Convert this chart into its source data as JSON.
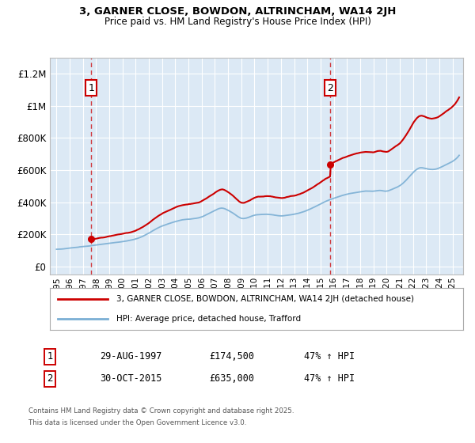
{
  "title1": "3, GARNER CLOSE, BOWDON, ALTRINCHAM, WA14 2JH",
  "title2": "Price paid vs. HM Land Registry's House Price Index (HPI)",
  "purchase1_year": 1997.625,
  "purchase1_price": 174500,
  "purchase2_year": 2015.75,
  "purchase2_price": 635000,
  "legend1": "3, GARNER CLOSE, BOWDON, ALTRINCHAM, WA14 2JH (detached house)",
  "legend2": "HPI: Average price, detached house, Trafford",
  "ann1_num": "1",
  "ann1_date": "29-AUG-1997",
  "ann1_price": "£174,500",
  "ann1_pct": "47% ↑ HPI",
  "ann2_num": "2",
  "ann2_date": "30-OCT-2015",
  "ann2_price": "£635,000",
  "ann2_pct": "47% ↑ HPI",
  "footnote1": "Contains HM Land Registry data © Crown copyright and database right 2025.",
  "footnote2": "This data is licensed under the Open Government Licence v3.0.",
  "red_color": "#cc0000",
  "blue_color": "#7bafd4",
  "bg_color": "#dce9f5",
  "fig_bg": "#ffffff",
  "grid_color": "#ffffff",
  "ylim_max": 1300000,
  "ylim_min": -50000,
  "xlim_min": 1994.5,
  "xlim_max": 2025.8,
  "yticks": [
    0,
    200000,
    400000,
    600000,
    800000,
    1000000,
    1200000
  ],
  "ytick_labels": [
    "£0",
    "£200K",
    "£400K",
    "£600K",
    "£800K",
    "£1M",
    "£1.2M"
  ],
  "hpi_anchors_x": [
    1995.0,
    1995.5,
    1996.0,
    1996.5,
    1997.0,
    1997.5,
    1998.0,
    1998.5,
    1999.0,
    1999.5,
    2000.0,
    2000.5,
    2001.0,
    2001.5,
    2002.0,
    2002.5,
    2003.0,
    2003.5,
    2004.0,
    2004.5,
    2005.0,
    2005.5,
    2006.0,
    2006.5,
    2007.0,
    2007.5,
    2008.0,
    2008.5,
    2009.0,
    2009.5,
    2010.0,
    2010.5,
    2011.0,
    2011.5,
    2012.0,
    2012.5,
    2013.0,
    2013.5,
    2014.0,
    2014.5,
    2015.0,
    2015.5,
    2016.0,
    2016.5,
    2017.0,
    2017.5,
    2018.0,
    2018.5,
    2019.0,
    2019.5,
    2020.0,
    2020.5,
    2021.0,
    2021.5,
    2022.0,
    2022.5,
    2023.0,
    2023.5,
    2024.0,
    2024.5,
    2025.0,
    2025.5
  ],
  "hpi_anchors_y": [
    108000,
    111000,
    116000,
    120000,
    126000,
    130000,
    136000,
    140000,
    146000,
    151000,
    156000,
    163000,
    173000,
    188000,
    208000,
    232000,
    252000,
    267000,
    281000,
    291000,
    296000,
    301000,
    311000,
    331000,
    351000,
    366000,
    352000,
    327000,
    302000,
    307000,
    321000,
    326000,
    327000,
    322000,
    317000,
    321000,
    327000,
    337000,
    352000,
    371000,
    392000,
    412000,
    427000,
    441000,
    452000,
    461000,
    467000,
    472000,
    472000,
    477000,
    472000,
    487000,
    507000,
    542000,
    587000,
    617000,
    612000,
    607000,
    617000,
    637000,
    657000,
    695000
  ]
}
